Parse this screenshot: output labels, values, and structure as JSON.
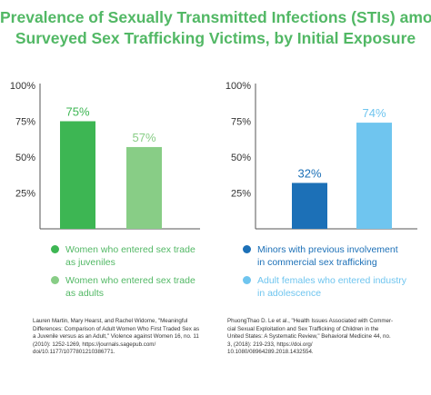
{
  "title_lines": [
    "Prevalence of Sexually Transmitted Infections (STIs) among",
    "Surveyed Sex Trafficking Victims, by Initial Exposure"
  ],
  "colors": {
    "title": "#52b865",
    "left_dark": "#3db653",
    "left_light": "#88cd86",
    "right_dark": "#1c70b7",
    "right_light": "#6fc5ef",
    "left_legend_text": "#52b865",
    "right_legend_text": "#1c70b7",
    "right_legend_text_light": "#6fc5ef",
    "axis": "#555555"
  },
  "chart_data": [
    {
      "type": "bar",
      "categories": [
        "Women who entered sex trade as juveniles",
        "Women who entered sex trade as adults"
      ],
      "values": [
        75,
        57
      ],
      "data_labels": [
        "75%",
        "57%"
      ],
      "ylim": [
        0,
        100
      ],
      "yticks": [
        "25%",
        "50%",
        "75%",
        "100%"
      ],
      "legend": [
        {
          "lines": [
            "Women who entered sex trade",
            "as juveniles"
          ],
          "color": "#3db653"
        },
        {
          "lines": [
            "Women who entered sex trade",
            "as adults"
          ],
          "color": "#88cd86"
        }
      ],
      "source_lines": [
        "Lauren Martin, Mary Hearst, and Rachel Widome, \"Meaningful",
        "Differences: Comparison of Adult Women Who First Traded Sex as",
        "a Juvenile versus as an Adult,\" Violence against Women 16, no. 11",
        "(2010): 1252-1269, https://journals.sagepub.com/",
        "doi/10.1177/1077801210386771."
      ]
    },
    {
      "type": "bar",
      "categories": [
        "Minors with previous involvement in commercial sex trafficking",
        "Adult females who entered industry in adolescence"
      ],
      "values": [
        32,
        74
      ],
      "data_labels": [
        "32%",
        "74%"
      ],
      "ylim": [
        0,
        100
      ],
      "yticks": [
        "25%",
        "50%",
        "75%",
        "100%"
      ],
      "legend": [
        {
          "lines": [
            "Minors with previous involvement",
            "in commercial sex trafficking"
          ],
          "color": "#1c70b7"
        },
        {
          "lines": [
            "Adult females who entered industry",
            "in adolescence"
          ],
          "color": "#6fc5ef"
        }
      ],
      "source_lines": [
        "PhuongThao D. Le et al., \"Health Issues Associated with Commer-",
        "cial Sexual Exploitation and Sex Trafficking of Children in the",
        "United States: A Systematic Review,\" Behavioral Medicine 44, no.",
        "3, (2018): 219-233, https://doi.org/",
        "10.1080/08964289.2018.1432554."
      ]
    }
  ]
}
